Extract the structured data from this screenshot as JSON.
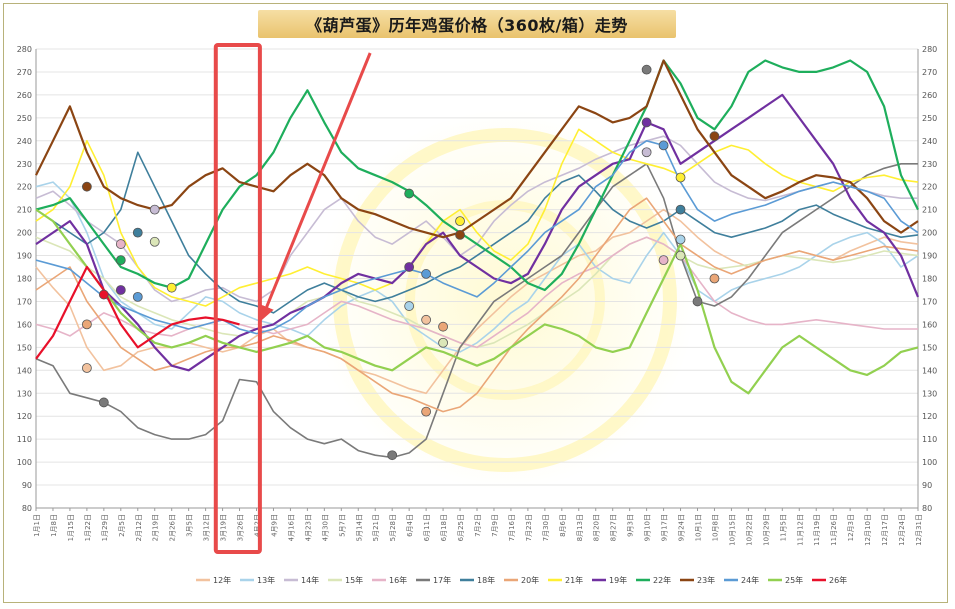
{
  "chart_data": {
    "type": "line",
    "title": "《葫芦蛋》历年鸡蛋价格（360枚/箱）走势",
    "ylim": [
      80,
      280
    ],
    "y_ticks": [
      "280",
      "270",
      "260",
      "250",
      "240",
      "230",
      "220",
      "210",
      "200",
      "190",
      "180",
      "170",
      "160",
      "150",
      "140",
      "130",
      "120",
      "110",
      "100",
      "90",
      "80"
    ],
    "x_ticks": [
      "1月1日",
      "1月8日",
      "1月15日",
      "1月22日",
      "1月29日",
      "2月5日",
      "2月12日",
      "2月19日",
      "2月26日",
      "3月5日",
      "3月12日",
      "3月19日",
      "3月26日",
      "4月2日",
      "4月9日",
      "4月16日",
      "4月23日",
      "4月30日",
      "5月7日",
      "5月14日",
      "5月21日",
      "5月28日",
      "6月4日",
      "6月11日",
      "6月18日",
      "6月25日",
      "7月2日",
      "7月9日",
      "7月16日",
      "7月23日",
      "7月30日",
      "8月6日",
      "8月13日",
      "8月20日",
      "8月27日",
      "9月3日",
      "9月10日",
      "9月17日",
      "9月24日",
      "10月1日",
      "10月8日",
      "10月15日",
      "10月22日",
      "10月29日",
      "11月5日",
      "11月12日",
      "11月19日",
      "11月26日",
      "12月3日",
      "12月10日",
      "12月17日",
      "12月24日",
      "12月31日"
    ],
    "series": [
      {
        "name": "12年",
        "color": "#f2c29e",
        "values": [
          185,
          176,
          168,
          150,
          140,
          142,
          148,
          150,
          150,
          152,
          150,
          148,
          150,
          155,
          158,
          152,
          150,
          148,
          145,
          140,
          138,
          135,
          132,
          130,
          140,
          150,
          158,
          165,
          172,
          178,
          182,
          186,
          190,
          192,
          198,
          200,
          205,
          210,
          205,
          198,
          192,
          188,
          185,
          188,
          190,
          192,
          190,
          188,
          192,
          195,
          198,
          196,
          195
        ]
      },
      {
        "name": "13年",
        "color": "#a9d3ea",
        "values": [
          220,
          222,
          215,
          200,
          180,
          170,
          165,
          160,
          158,
          165,
          172,
          170,
          165,
          162,
          160,
          158,
          155,
          162,
          168,
          172,
          175,
          170,
          160,
          155,
          150,
          148,
          152,
          158,
          165,
          170,
          180,
          190,
          195,
          185,
          180,
          178,
          190,
          200,
          190,
          175,
          170,
          175,
          178,
          180,
          182,
          185,
          190,
          195,
          198,
          200,
          195,
          185,
          190
        ]
      },
      {
        "name": "14年",
        "color": "#c7bcd4",
        "values": [
          215,
          218,
          212,
          205,
          200,
          195,
          185,
          175,
          170,
          172,
          175,
          176,
          172,
          170,
          175,
          190,
          200,
          210,
          215,
          205,
          198,
          195,
          200,
          205,
          198,
          190,
          195,
          205,
          212,
          218,
          222,
          225,
          228,
          232,
          235,
          238,
          240,
          242,
          238,
          230,
          222,
          218,
          215,
          214,
          216,
          218,
          220,
          222,
          220,
          218,
          216,
          215,
          215
        ]
      },
      {
        "name": "15年",
        "color": "#dbe6b8",
        "values": [
          198,
          195,
          192,
          185,
          180,
          172,
          168,
          165,
          162,
          160,
          158,
          156,
          155,
          158,
          160,
          165,
          170,
          172,
          175,
          170,
          168,
          165,
          162,
          158,
          155,
          152,
          150,
          152,
          156,
          160,
          165,
          170,
          175,
          182,
          190,
          195,
          198,
          195,
          190,
          186,
          184,
          185,
          186,
          188,
          190,
          189,
          188,
          187,
          188,
          190,
          192,
          191,
          190
        ]
      },
      {
        "name": "16年",
        "color": "#e6b4c8",
        "values": [
          160,
          158,
          155,
          160,
          165,
          162,
          158,
          156,
          155,
          158,
          160,
          162,
          160,
          158,
          156,
          158,
          160,
          165,
          170,
          168,
          165,
          162,
          160,
          158,
          155,
          152,
          150,
          155,
          160,
          165,
          172,
          178,
          182,
          185,
          190,
          195,
          198,
          195,
          190,
          180,
          170,
          165,
          162,
          160,
          160,
          161,
          162,
          161,
          160,
          159,
          158,
          158,
          158
        ]
      },
      {
        "name": "17年",
        "color": "#7a7a7a",
        "values": [
          145,
          142,
          130,
          128,
          126,
          122,
          115,
          112,
          110,
          110,
          112,
          118,
          136,
          135,
          122,
          115,
          110,
          108,
          110,
          105,
          103,
          102,
          104,
          110,
          130,
          150,
          160,
          170,
          175,
          180,
          185,
          190,
          200,
          210,
          220,
          225,
          230,
          215,
          190,
          170,
          168,
          172,
          180,
          190,
          200,
          205,
          210,
          215,
          220,
          225,
          228,
          230,
          230
        ]
      },
      {
        "name": "18年",
        "color": "#3f7f9c",
        "values": [
          210,
          205,
          200,
          195,
          200,
          210,
          235,
          220,
          205,
          190,
          182,
          175,
          170,
          168,
          165,
          170,
          175,
          178,
          175,
          172,
          170,
          172,
          175,
          178,
          182,
          185,
          190,
          195,
          200,
          205,
          215,
          222,
          225,
          218,
          210,
          205,
          202,
          205,
          210,
          205,
          200,
          198,
          200,
          202,
          205,
          210,
          212,
          208,
          205,
          202,
          200,
          198,
          199
        ]
      },
      {
        "name": "20年",
        "color": "#eaa677",
        "values": [
          175,
          180,
          185,
          170,
          160,
          150,
          145,
          140,
          142,
          145,
          148,
          150,
          150,
          152,
          155,
          153,
          150,
          148,
          145,
          140,
          135,
          130,
          128,
          125,
          122,
          124,
          130,
          140,
          150,
          158,
          165,
          172,
          180,
          190,
          200,
          210,
          215,
          205,
          195,
          190,
          185,
          182,
          185,
          188,
          190,
          192,
          190,
          188,
          190,
          192,
          194,
          193,
          192
        ]
      },
      {
        "name": "21年",
        "color": "#ffef33",
        "values": [
          205,
          210,
          220,
          240,
          225,
          200,
          185,
          176,
          172,
          170,
          168,
          172,
          176,
          178,
          180,
          182,
          185,
          182,
          180,
          178,
          175,
          178,
          185,
          195,
          205,
          210,
          200,
          192,
          188,
          195,
          210,
          230,
          245,
          240,
          235,
          232,
          230,
          228,
          225,
          230,
          235,
          238,
          236,
          230,
          225,
          222,
          220,
          218,
          222,
          224,
          225,
          223,
          222
        ]
      },
      {
        "name": "19年",
        "color": "#7030a0",
        "values": [
          195,
          200,
          205,
          195,
          175,
          168,
          160,
          150,
          142,
          140,
          145,
          150,
          155,
          158,
          160,
          165,
          168,
          172,
          178,
          182,
          180,
          178,
          185,
          195,
          200,
          190,
          185,
          180,
          178,
          182,
          195,
          210,
          220,
          225,
          230,
          232,
          248,
          245,
          230,
          235,
          240,
          245,
          250,
          255,
          260,
          250,
          240,
          230,
          215,
          205,
          200,
          190,
          172
        ]
      },
      {
        "name": "22年",
        "color": "#1eae5c",
        "values": [
          210,
          212,
          215,
          205,
          195,
          185,
          182,
          178,
          176,
          180,
          195,
          210,
          220,
          225,
          235,
          250,
          262,
          248,
          235,
          228,
          225,
          222,
          218,
          212,
          205,
          200,
          195,
          190,
          185,
          178,
          175,
          182,
          195,
          210,
          225,
          240,
          255,
          275,
          265,
          250,
          245,
          255,
          270,
          275,
          272,
          270,
          270,
          272,
          275,
          270,
          255,
          225,
          210
        ]
      },
      {
        "name": "23年",
        "color": "#8b4513",
        "values": [
          225,
          240,
          255,
          235,
          220,
          215,
          212,
          210,
          212,
          220,
          225,
          228,
          222,
          220,
          218,
          225,
          230,
          225,
          215,
          210,
          208,
          205,
          202,
          200,
          198,
          200,
          205,
          210,
          215,
          225,
          235,
          245,
          255,
          252,
          248,
          250,
          255,
          275,
          260,
          245,
          235,
          225,
          220,
          215,
          218,
          222,
          225,
          224,
          222,
          215,
          205,
          200,
          205
        ]
      },
      {
        "name": "24年",
        "color": "#5b9bd5",
        "values": [
          188,
          186,
          184,
          178,
          172,
          168,
          165,
          162,
          160,
          158,
          160,
          162,
          158,
          156,
          158,
          162,
          168,
          172,
          175,
          178,
          180,
          182,
          184,
          182,
          178,
          175,
          172,
          178,
          185,
          192,
          200,
          205,
          210,
          220,
          225,
          235,
          240,
          238,
          222,
          210,
          205,
          208,
          210,
          212,
          215,
          218,
          220,
          222,
          220,
          218,
          215,
          205,
          200
        ]
      },
      {
        "name": "25年",
        "color": "#92d050",
        "values": [
          210,
          205,
          195,
          185,
          175,
          165,
          158,
          152,
          150,
          152,
          155,
          152,
          150,
          148,
          150,
          152,
          155,
          150,
          148,
          145,
          142,
          140,
          145,
          150,
          148,
          145,
          142,
          145,
          150,
          155,
          160,
          158,
          155,
          150,
          148,
          150,
          165,
          180,
          195,
          175,
          150,
          135,
          130,
          140,
          150,
          155,
          150,
          145,
          140,
          138,
          142,
          148,
          150
        ]
      },
      {
        "name": "26年",
        "color": "#e8102a",
        "values": [
          145,
          155,
          170,
          185,
          175,
          160,
          150,
          155,
          160,
          162,
          163,
          162,
          160,
          null,
          null,
          null,
          null,
          null,
          null,
          null,
          null,
          null,
          null,
          null,
          null,
          null,
          null,
          null,
          null,
          null,
          null,
          null,
          null,
          null,
          null,
          null,
          null,
          null,
          null,
          null,
          null,
          null,
          null,
          null,
          null,
          null,
          null,
          null,
          null,
          null,
          null,
          null,
          null
        ]
      }
    ],
    "markers": [
      {
        "series": "12年",
        "color": "#f2c29e",
        "points": [
          [
            3,
            141
          ],
          [
            23,
            162
          ]
        ]
      },
      {
        "series": "13年",
        "color": "#a9d3ea",
        "points": [
          [
            22,
            168
          ],
          [
            38,
            197
          ]
        ]
      },
      {
        "series": "14年",
        "color": "#c7bcd4",
        "points": [
          [
            7,
            210
          ],
          [
            36,
            235
          ]
        ]
      },
      {
        "series": "15年",
        "color": "#dbe6b8",
        "points": [
          [
            7,
            196
          ],
          [
            38,
            190
          ],
          [
            24,
            152
          ]
        ]
      },
      {
        "series": "16年",
        "color": "#e6b4c8",
        "points": [
          [
            5,
            195
          ],
          [
            37,
            188
          ]
        ]
      },
      {
        "series": "17年",
        "color": "#7a7a7a",
        "points": [
          [
            4,
            126
          ],
          [
            21,
            103
          ],
          [
            36,
            271
          ],
          [
            39,
            170
          ]
        ]
      },
      {
        "series": "18年",
        "color": "#3f7f9c",
        "points": [
          [
            6,
            200
          ],
          [
            38,
            210
          ]
        ]
      },
      {
        "series": "20年",
        "color": "#eaa677",
        "points": [
          [
            3,
            160
          ],
          [
            24,
            159
          ],
          [
            23,
            122
          ],
          [
            40,
            180
          ]
        ]
      },
      {
        "series": "21年",
        "color": "#ffef33",
        "points": [
          [
            8,
            176
          ],
          [
            25,
            205
          ],
          [
            38,
            224
          ]
        ]
      },
      {
        "series": "19年",
        "color": "#7030a0",
        "points": [
          [
            5,
            175
          ],
          [
            22,
            185
          ],
          [
            36,
            248
          ]
        ]
      },
      {
        "series": "22年",
        "color": "#1eae5c",
        "points": [
          [
            5,
            188
          ],
          [
            22,
            217
          ]
        ]
      },
      {
        "series": "23年",
        "color": "#8b4513",
        "points": [
          [
            3,
            220
          ],
          [
            25,
            199
          ],
          [
            40,
            242
          ]
        ]
      },
      {
        "series": "24年",
        "color": "#5b9bd5",
        "points": [
          [
            6,
            172
          ],
          [
            23,
            182
          ],
          [
            37,
            238
          ]
        ]
      },
      {
        "series": "26年",
        "color": "#e8102a",
        "points": [
          [
            4,
            173
          ]
        ]
      }
    ],
    "highlight": {
      "from_index": 10.6,
      "to_index": 13.2,
      "color": "#e84a4a"
    },
    "legend_position": "bottom"
  }
}
